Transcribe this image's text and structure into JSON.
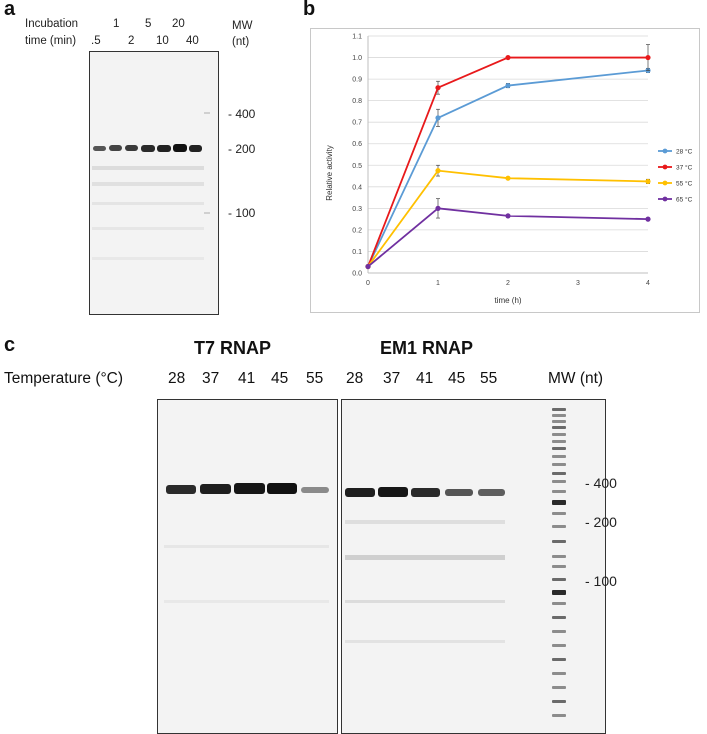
{
  "panel_a": {
    "letter": "a",
    "header_line1": "Incubation",
    "header_line2": "time (min)",
    "time_labels_top": [
      "1",
      "5",
      "20"
    ],
    "time_labels_bottom": [
      ".5",
      "2",
      "10",
      "40"
    ],
    "mw_header_line1": "MW",
    "mw_header_line2": "(nt)",
    "mw_markers": [
      "- 400",
      "- 200",
      "- 100"
    ]
  },
  "panel_b": {
    "letter": "b",
    "chart_data": {
      "type": "line",
      "title": "",
      "xlabel": "time (h)",
      "ylabel": "Relative activity",
      "xlim": [
        0,
        4
      ],
      "ylim": [
        0,
        1.1
      ],
      "x_ticks": [
        "0",
        "1",
        "2",
        "3",
        "4"
      ],
      "y_ticks": [
        "0.0",
        "0.1",
        "0.2",
        "0.3",
        "0.4",
        "0.5",
        "0.6",
        "0.7",
        "0.8",
        "0.9",
        "1.0",
        "1.1"
      ],
      "grid": "horizontal",
      "legend_position": "right",
      "x": [
        0,
        1,
        2,
        4
      ],
      "series": [
        {
          "name": "28 °C",
          "color": "#5b9bd5",
          "values": [
            0.03,
            0.72,
            0.87,
            0.94
          ],
          "errors": [
            0,
            0.04,
            0.01,
            0.01
          ]
        },
        {
          "name": "37 °C",
          "color": "#e8191b",
          "values": [
            0.03,
            0.86,
            1.0,
            1.0
          ],
          "errors": [
            0,
            0.03,
            0,
            0.06
          ]
        },
        {
          "name": "55 °C",
          "color": "#ffc000",
          "values": [
            0.03,
            0.475,
            0.44,
            0.425
          ],
          "errors": [
            0,
            0.025,
            0,
            0.01
          ]
        },
        {
          "name": "65 °C",
          "color": "#7030a0",
          "values": [
            0.03,
            0.3,
            0.265,
            0.25
          ],
          "errors": [
            0,
            0.045,
            0,
            0
          ]
        }
      ]
    }
  },
  "panel_c": {
    "letter": "c",
    "t7_title": "T7 RNAP",
    "em1_title": "EM1 RNAP",
    "temperature_label": "Temperature (°C)",
    "t7_temps": [
      "28",
      "37",
      "41",
      "45",
      "55"
    ],
    "em1_temps": [
      "28",
      "37",
      "41",
      "45",
      "55"
    ],
    "mw_header": "MW (nt)",
    "mw_markers": [
      "- 400",
      "- 200",
      "- 100"
    ]
  }
}
